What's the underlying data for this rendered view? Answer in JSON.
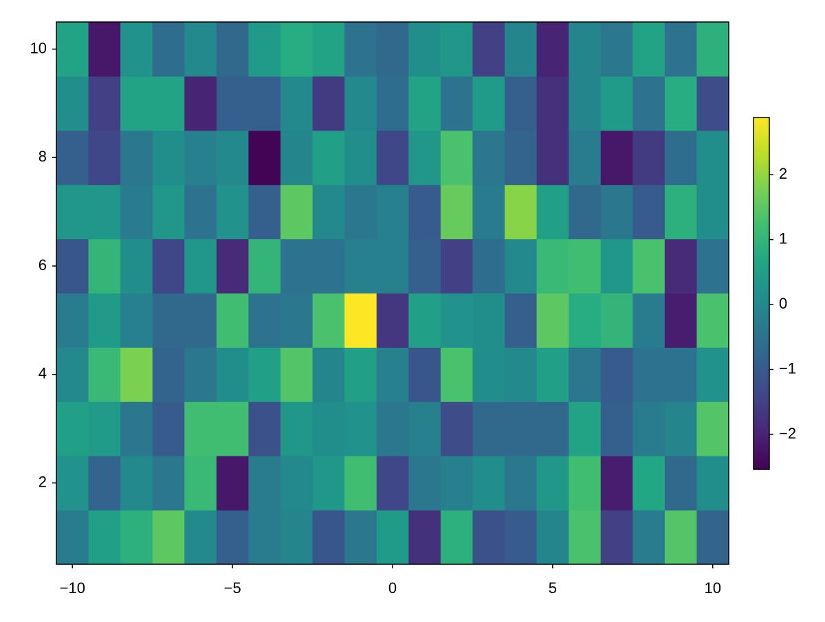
{
  "chart_data": {
    "type": "heatmap",
    "x": [
      -10,
      -9,
      -8,
      -7,
      -6,
      -5,
      -4,
      -3,
      -2,
      -1,
      0,
      1,
      2,
      3,
      4,
      5,
      6,
      7,
      8,
      9,
      10
    ],
    "y": [
      1,
      2,
      3,
      4,
      5,
      6,
      7,
      8,
      9,
      10
    ],
    "z": [
      [
        -0.3,
        0.5,
        0.9,
        1.5,
        0.0,
        -0.9,
        -0.3,
        -0.1,
        -1.1,
        -0.4,
        0.4,
        -1.8,
        0.9,
        -1.2,
        -1.0,
        -0.1,
        1.3,
        -1.5,
        -0.3,
        1.4,
        -0.8
      ],
      [
        0.2,
        -0.8,
        0.0,
        -0.4,
        1.1,
        -2.2,
        -0.3,
        0.0,
        0.3,
        1.2,
        -1.4,
        -0.4,
        -0.2,
        0.1,
        -0.4,
        0.3,
        1.2,
        -2.1,
        0.7,
        -0.7,
        0.1
      ],
      [
        0.5,
        0.4,
        -0.4,
        -1.0,
        1.2,
        1.2,
        -1.2,
        0.3,
        0.1,
        0.2,
        -0.4,
        -0.2,
        -1.3,
        -0.7,
        -0.7,
        -0.7,
        0.6,
        -0.9,
        -0.3,
        -0.1,
        1.4
      ],
      [
        0.0,
        1.1,
        1.8,
        -0.8,
        -0.4,
        0.1,
        0.5,
        1.4,
        -0.1,
        0.5,
        -0.2,
        -1.1,
        1.3,
        0.1,
        0.0,
        0.5,
        -0.4,
        -1.0,
        -0.5,
        -0.5,
        0.2
      ],
      [
        -0.3,
        0.4,
        -0.2,
        -0.7,
        -0.7,
        1.2,
        -0.5,
        -0.4,
        1.3,
        2.88,
        -1.7,
        0.5,
        0.2,
        0.1,
        -0.9,
        1.5,
        0.8,
        1.0,
        -0.3,
        -2.1,
        1.3
      ],
      [
        -1.1,
        1.0,
        0.1,
        -1.4,
        0.3,
        -1.9,
        1.0,
        -0.5,
        -0.5,
        -0.2,
        -0.2,
        -0.9,
        -1.5,
        -0.6,
        0.0,
        1.1,
        1.2,
        0.3,
        1.3,
        -1.9,
        -0.5
      ],
      [
        0.3,
        0.3,
        -0.3,
        0.3,
        -0.5,
        0.2,
        -0.9,
        1.5,
        0.0,
        -0.4,
        -0.2,
        -1.0,
        1.6,
        -0.3,
        1.9,
        0.5,
        -0.7,
        -0.4,
        -1.0,
        0.9,
        0.1
      ],
      [
        -0.9,
        -1.4,
        -0.4,
        0.1,
        -0.2,
        0.0,
        -2.5,
        -0.1,
        0.5,
        0.1,
        -1.4,
        0.3,
        1.3,
        -0.4,
        -0.8,
        -1.8,
        -0.3,
        -2.2,
        -1.6,
        -0.6,
        0.1
      ],
      [
        0.1,
        -1.5,
        0.6,
        0.6,
        -2.0,
        -0.9,
        -0.9,
        0.0,
        -1.6,
        0.0,
        -0.6,
        0.6,
        -0.5,
        0.4,
        -0.9,
        -1.8,
        -0.1,
        0.4,
        -0.5,
        0.8,
        -1.3
      ],
      [
        0.6,
        -2.2,
        0.2,
        -0.6,
        0.0,
        -0.7,
        0.4,
        0.8,
        0.6,
        -0.5,
        -0.7,
        0.1,
        0.3,
        -1.5,
        -0.1,
        -2.0,
        -0.1,
        -0.4,
        0.6,
        -0.5,
        0.9
      ]
    ],
    "colormap": "viridis",
    "clim": [
      -2.54,
      2.88
    ],
    "xlim": [
      -10.5,
      10.5
    ],
    "ylim": [
      0.5,
      10.5
    ],
    "xticks": [
      {
        "value": -10,
        "label": "−10"
      },
      {
        "value": -5,
        "label": "−5"
      },
      0,
      5,
      10
    ],
    "yticks": [
      2,
      4,
      6,
      8,
      10
    ],
    "cticks": [
      {
        "value": -2,
        "label": "−2"
      },
      {
        "value": -1,
        "label": "−1"
      },
      0,
      1,
      2
    ]
  }
}
